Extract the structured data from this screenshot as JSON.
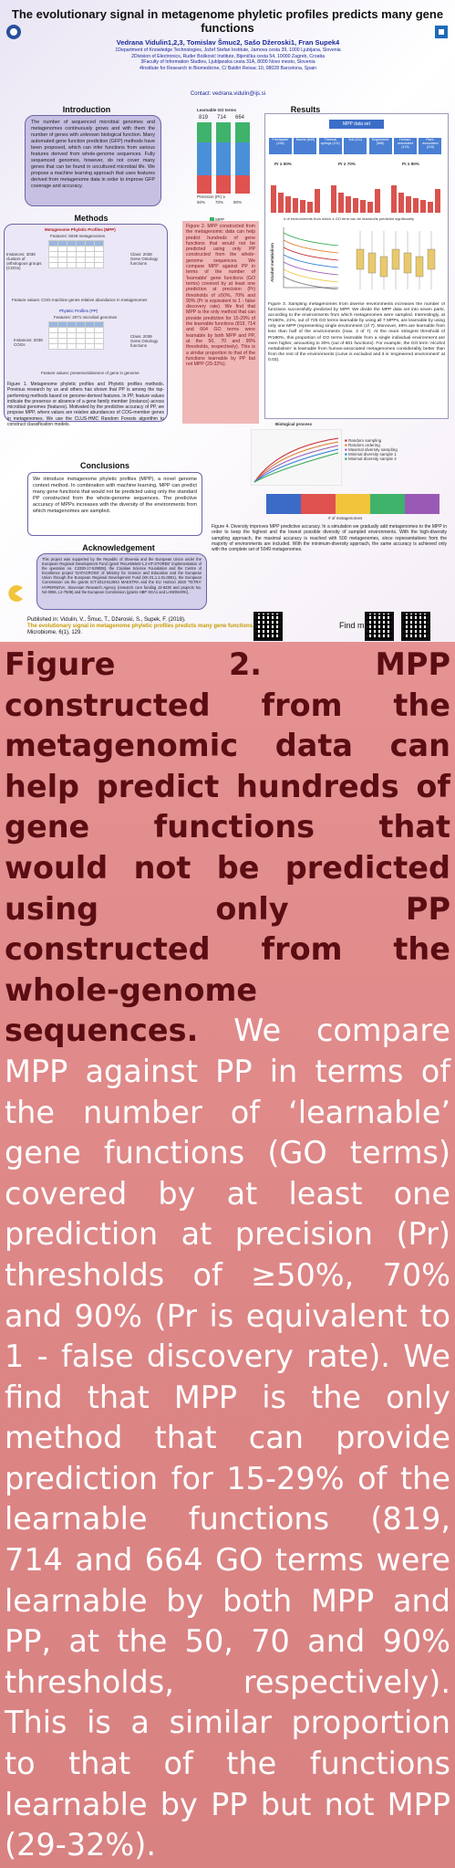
{
  "poster": {
    "title": "The evolutionary signal in metagenome phyletic profiles predicts many gene functions",
    "authors": "Vedrana Vidulin1,2,3, Tomislav Šmuc2, Sašo Džeroski1, Fran Supek4",
    "affiliations": [
      "1Department of Knowledge Technologies, Jožef Stefan Institute, Jamova cesta 39, 1000 Ljubljana, Slovenia",
      "2Division of Electronics, Ruđer Bošković Institute, Bijenička cesta 54, 10000 Zagreb, Croatia",
      "3Faculty of Information Studies, Ljubljanska cesta 31A, 8000 Novo mesto, Slovenia",
      "4Institute for Research in Biomedicine, C/ Baldiri Reixac 10, 08028 Barcelona, Spain"
    ],
    "contact": "Contact: vedrana.vidulin@ijs.si",
    "introduction": {
      "heading": "Introduction",
      "text": "The number of sequenced microbial genomes and metagenomes continuously grows and with them the number of genes with unknown biological function. Many automated gene function prediction (GFP) methods have been proposed, which can infer functions from various features derived from whole-genome sequences. Fully sequenced genomes, however, do not cover many genes that can be found in uncultured microbial life. We propose a machine learning approach that uses features derived from metagenome data in order to improve GFP coverage and accuracy."
    },
    "methods": {
      "heading": "Methods",
      "mpp_label": "Metagenome Phyletic Profiles (MPP)",
      "mpp_features": "Features: 5049 metagenomes",
      "pp_label": "Phyletic Profiles (PP)",
      "pp_features": "Features: 2071 microbial genomes",
      "instances_mpp": "Instances: 3038 clusters of orthologous groups (COGs)",
      "instances_pp": "Instances: 2038 COGs",
      "class_label": "Class: 2038 Gene Ontology functions",
      "feature_note_mpp": "Feature values: COG-machine genes relative abundance in metagenomes",
      "feature_note_pp": "Feature values: presence/absence of gene in genome",
      "fig1_caption": "Figure 1. Metagenome phyletic profiles and Phyletic profiles methods. Previous research by us and others has shown that PP is among the top-performing methods based on genome-derived features. In PP, feature values indicate the presence or absence of a gene family member (instance) across microbial genomes (features). Motivated by the predictive accuracy of PP, we propose MPP, where values are relative abundances of COG-member genes in metagenomes. We use the CLUS-HMC Random Forests algorithm to construct classification models."
    },
    "fig2_small_caption": "Figure 2. MPP constructed from the metagenomic data can help predict hundreds of gene functions that would not be predicted using only PP constructed from the whole-genome sequences. We compare MPP against PP in terms of the number of 'learnable' gene functions (GO terms) covered by at least one prediction at precision (Pr) thresholds of ≥50%, 70% and 90% (Pr is equivalent to 1 - false discovery rate). We find that MPP is the only method that can provide prediction for 15-29% of the learnable functions (819, 714 and 664 GO terms were learnable by both MPP and PP, at the 50, 70 and 90% thresholds, respectively). This is a similar proportion to that of the functions learnable by PP but not MPP (29-32%).",
    "fig2_chart": {
      "heading": "Learnable GO terms",
      "counts": [
        "819",
        "714",
        "664"
      ],
      "precisions": [
        "50%",
        "70%",
        "90%"
      ],
      "axis_label": "Precision (Pr) ≥",
      "legend": [
        "MPP",
        "MPP & PP",
        "PP"
      ],
      "colors": {
        "mpp": "#3fb36b",
        "both": "#4a90d9",
        "pp": "#e0524f"
      }
    },
    "results": {
      "heading": "Results",
      "root_node": "MPP data set",
      "environments": [
        "Freshwater (436)",
        "Marine (640)",
        "Thermal springs (101)",
        "Soil (411)",
        "Engineered (586)",
        "Human-associated (476)",
        "Plant-associated (215)"
      ],
      "panel_titles": [
        "Pr ≥ 50%",
        "Pr ≥ 70%",
        "Pr ≥ 90%"
      ],
      "panel_subtitles": [
        "725 GO terms",
        "671 GO terms",
        "601 GO terms"
      ],
      "x_axis_label": "# of environments from which a GO term can be learned/is predicted significantly",
      "alcohol_label": "Alcohol metabolism",
      "fig3_caption": "Figure 3. Sampling metagenomes from diverse environments increases the number of functions successfully predicted by MPP. We divide the MPP data set into seven parts, according to the environments from which metagenomes were sampled. Interestingly, at Pr≥50%, 21%, out of 725 GO terms learnable by using all 7 MPPs, are learnable by using only one MPP (representing single environment (of 7). Moreover, 49% are learnable from less than half of the environments (max. 3 of 7). At the more stringent threshold of Pr≥90%, this proportion of GO terms learnable from a single individual environment are even higher, amounting to 30% (out of 601 functions). For example, the GO term 'Alcohol metabolism' is learnable from human-associated metagenomes considerably better than from the rest of the environments (curve is excluded and it is 'engineered environment' at 0.03).",
      "biological_process": "Biological process",
      "fig4_legend": [
        "Random sampling",
        "Random ordering",
        "Maximal diversity sampling",
        "Minimal diversity sample 1",
        "Minimal diversity sample 2"
      ],
      "fig4_x_label": "# of metagenomes",
      "fig4_caption": "Figure 4. Diversity improves MPP predictive accuracy. In a simulation we gradually add metagenomes to the MPP in order to keep the highest and the lowest possible diversity of sampled environments. With the high-diversity sampling approach, the maximal accuracy is reached with 500 metagenomes, since representatives from the majority of environments are included. With the minimum-diversity approach, the same accuracy is achieved only with the complete set of 5049 metagenomes."
    },
    "conclusions": {
      "heading": "Conclusions",
      "text": "We introduce metagenome phyletic profiles (MPP), a novel genome context method. In combination with machine learning, MPP can predict many gene functions that would not be predicted using only the standard PP constructed from the whole-genome sequences. The predictive accuracy of MPPs increases with the diversity of the environments from which metagenomes are sampled."
    },
    "acknowledgement": {
      "heading": "Acknowledgement",
      "text": "This project was supported by the Republic of Slovenia and the European Union under the European Regional Development Fund (grant 'ReLeWeleD-1.2-HT-STOREE' implementation of the operation no. C3330-17-529008), the Croatian Science Foundation and the Centre of Excellence project 'DATACROSS' of Ministry for Science and Education and the European Union through the European Regional Development Fund (KK.01.1.1.01.0001), the European Commission via the grants ICT-2013-612944 MAESTRA and the EU Horizon 2020 'TETRA' HYPERNOVA, Slovenian Research Agency (research core funding J2-9230 and projects No. N2-0056, L2-7509) and the European Commission (grants HBP SGA1 and LANDMARK)."
    },
    "published_line": "Published in: Vidulin, V., Šmuc, T., Džeroski, S., Supek, F. (2018).",
    "published_title": "The evolutionary signal in metagenome phyletic profiles predicts many gene functions.",
    "published_journal": "Microbiome, 6(1), 129.",
    "find_me": "Find me at:"
  },
  "zoom_caption": {
    "bold": "Figure 2. MPP constructed from the metagenomic data can help predict hundreds of gene functions that would not be predicted using only PP constructed from the whole-genome sequences.",
    "body": "We compare MPP against PP in terms of the number of ‘learnable’ gene functions (GO terms) covered by at least one prediction at precision (Pr) thresholds of ≥50%, 70% and 90% (Pr is equivalent to 1 - false discovery rate). We find that MPP is the only method that can provide prediction for 15-29% of the learnable functions (819, 714 and 664 GO terms were learnable by both MPP and PP, at the 50, 70 and 90% thresholds, respectively). This is a similar proportion to that of the functions learnable by PP but not MPP (29-32%)."
  }
}
